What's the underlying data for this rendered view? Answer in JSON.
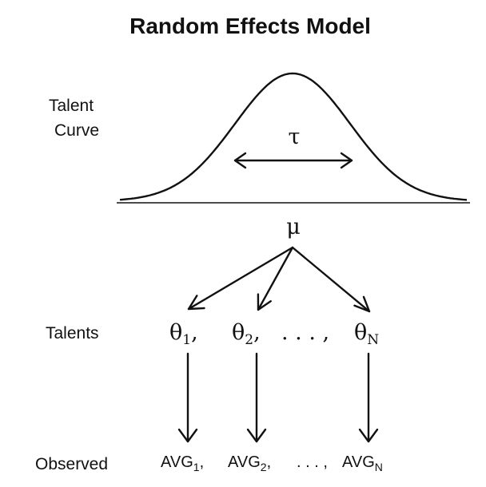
{
  "title": "Random Effects Model",
  "labels": {
    "talent_curve_line1": "Talent",
    "talent_curve_line2": "Curve",
    "talents": "Talents",
    "observed": "Observed"
  },
  "curve": {
    "spread_symbol": "τ",
    "mean_symbol": "μ"
  },
  "talents": {
    "symbol": "θ",
    "sub1": "1",
    "sep1": ",",
    "sub2": "2",
    "sep2": ",",
    "ellipsis": ". . . ,",
    "subN": "N"
  },
  "observed": {
    "symbol": "AVG",
    "sub1": "1",
    "sep1": ",",
    "sub2": "2",
    "sep2": ",",
    "ellipsis": ". . . ,",
    "subN": "N"
  }
}
